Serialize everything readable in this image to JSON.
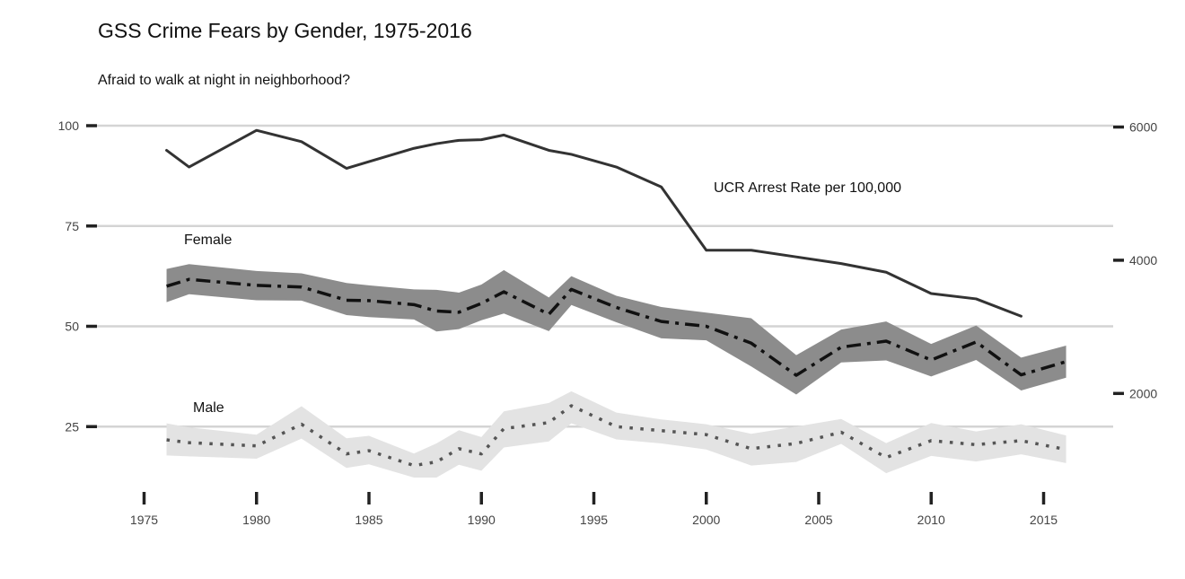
{
  "chart_data": {
    "type": "line",
    "title": "GSS Crime Fears by Gender, 1975-2016",
    "subtitle": "Afraid to walk at night in neighborhood?",
    "xlabel": "",
    "ylabel": "",
    "xlim": [
      1975,
      2016
    ],
    "ylim": [
      10,
      100
    ],
    "y2lim": [
      1400,
      6000
    ],
    "x_ticks": [
      1975,
      1980,
      1985,
      1990,
      1995,
      2000,
      2005,
      2010,
      2015
    ],
    "y_ticks": [
      25,
      50,
      75,
      100
    ],
    "y2_ticks": [
      2000,
      4000,
      6000
    ],
    "grid": "horizontal",
    "legend": "none",
    "annotations": {
      "female": "Female",
      "male": "Male",
      "ucr": "UCR Arrest Rate per 100,000"
    },
    "colors": {
      "grid": "#d4d4d4",
      "ucr_line": "#333333",
      "female_band": "#8c8c8c",
      "female_line": "#111111",
      "male_band": "#e3e3e3",
      "male_line": "#555555"
    },
    "series": [
      {
        "name": "Female",
        "axis": "left",
        "style": "dashdot",
        "x": [
          1976,
          1977,
          1980,
          1982,
          1984,
          1985,
          1987,
          1988,
          1989,
          1990,
          1991,
          1993,
          1994,
          1996,
          1998,
          2000,
          2002,
          2004,
          2006,
          2008,
          2010,
          2012,
          2014,
          2016
        ],
        "y": [
          60,
          61.7,
          60.2,
          59.8,
          56.5,
          56.4,
          55.4,
          53.8,
          53.5,
          55.7,
          58.6,
          53,
          59.2,
          54.7,
          51.2,
          50,
          45.8,
          37.8,
          44.8,
          46.3,
          41.6,
          46.1,
          37.9,
          41.2
        ],
        "lower": [
          56,
          58,
          56.5,
          56.4,
          52.8,
          52.3,
          51.7,
          48.7,
          49.3,
          51.5,
          53.2,
          48.8,
          55.3,
          51,
          47,
          46.5,
          40,
          33,
          41,
          41.5,
          37.5,
          41.6,
          34,
          37.2
        ],
        "upper": [
          64.3,
          65.5,
          63.8,
          63.2,
          60.8,
          60.2,
          59.2,
          59.1,
          58.4,
          60.4,
          64,
          57.2,
          62.5,
          57.6,
          54.8,
          53.4,
          52,
          42.8,
          49.2,
          51.2,
          45.6,
          50.2,
          42.2,
          45.2
        ]
      },
      {
        "name": "Male",
        "axis": "left",
        "style": "dotted",
        "x": [
          1976,
          1977,
          1980,
          1982,
          1984,
          1985,
          1987,
          1988,
          1989,
          1990,
          1991,
          1993,
          1994,
          1996,
          1998,
          2000,
          2002,
          2004,
          2006,
          2008,
          2010,
          2012,
          2014,
          2016
        ],
        "y": [
          21.7,
          21,
          20.2,
          25.6,
          18.2,
          19,
          15.3,
          16.2,
          19.5,
          18.2,
          24.5,
          26,
          30.2,
          25,
          24,
          23,
          19.5,
          20.8,
          23.6,
          17.3,
          21.5,
          20.5,
          21.5,
          19.3
        ],
        "lower": [
          17.8,
          17.6,
          17,
          22,
          14.7,
          15.6,
          12.3,
          12.3,
          15.5,
          14,
          19.8,
          21.3,
          25.8,
          21.8,
          20.8,
          19.3,
          15.3,
          16.2,
          20.7,
          13.4,
          17.7,
          16.3,
          18.1,
          15.9
        ],
        "upper": [
          25.8,
          24.8,
          23,
          30.1,
          22.1,
          22.7,
          18.3,
          20.8,
          24.1,
          22.4,
          28.8,
          30.9,
          33.8,
          28.5,
          26.8,
          25.6,
          23.2,
          25,
          26.9,
          20.9,
          25.9,
          23.8,
          25.6,
          22.8
        ]
      },
      {
        "name": "UCR Arrest Rate per 100,000",
        "axis": "right",
        "style": "solid",
        "x": [
          1976,
          1977,
          1980,
          1982,
          1984,
          1985,
          1987,
          1988,
          1989,
          1990,
          1991,
          1993,
          1994,
          1996,
          1998,
          2000,
          2002,
          2004,
          2006,
          2008,
          2010,
          2012,
          2014
        ],
        "y": [
          5650,
          5400,
          5950,
          5780,
          5380,
          5480,
          5680,
          5750,
          5800,
          5810,
          5880,
          5650,
          5590,
          5400,
          5100,
          4150,
          4150,
          4050,
          3950,
          3820,
          3500,
          3420,
          3160
        ]
      }
    ]
  }
}
